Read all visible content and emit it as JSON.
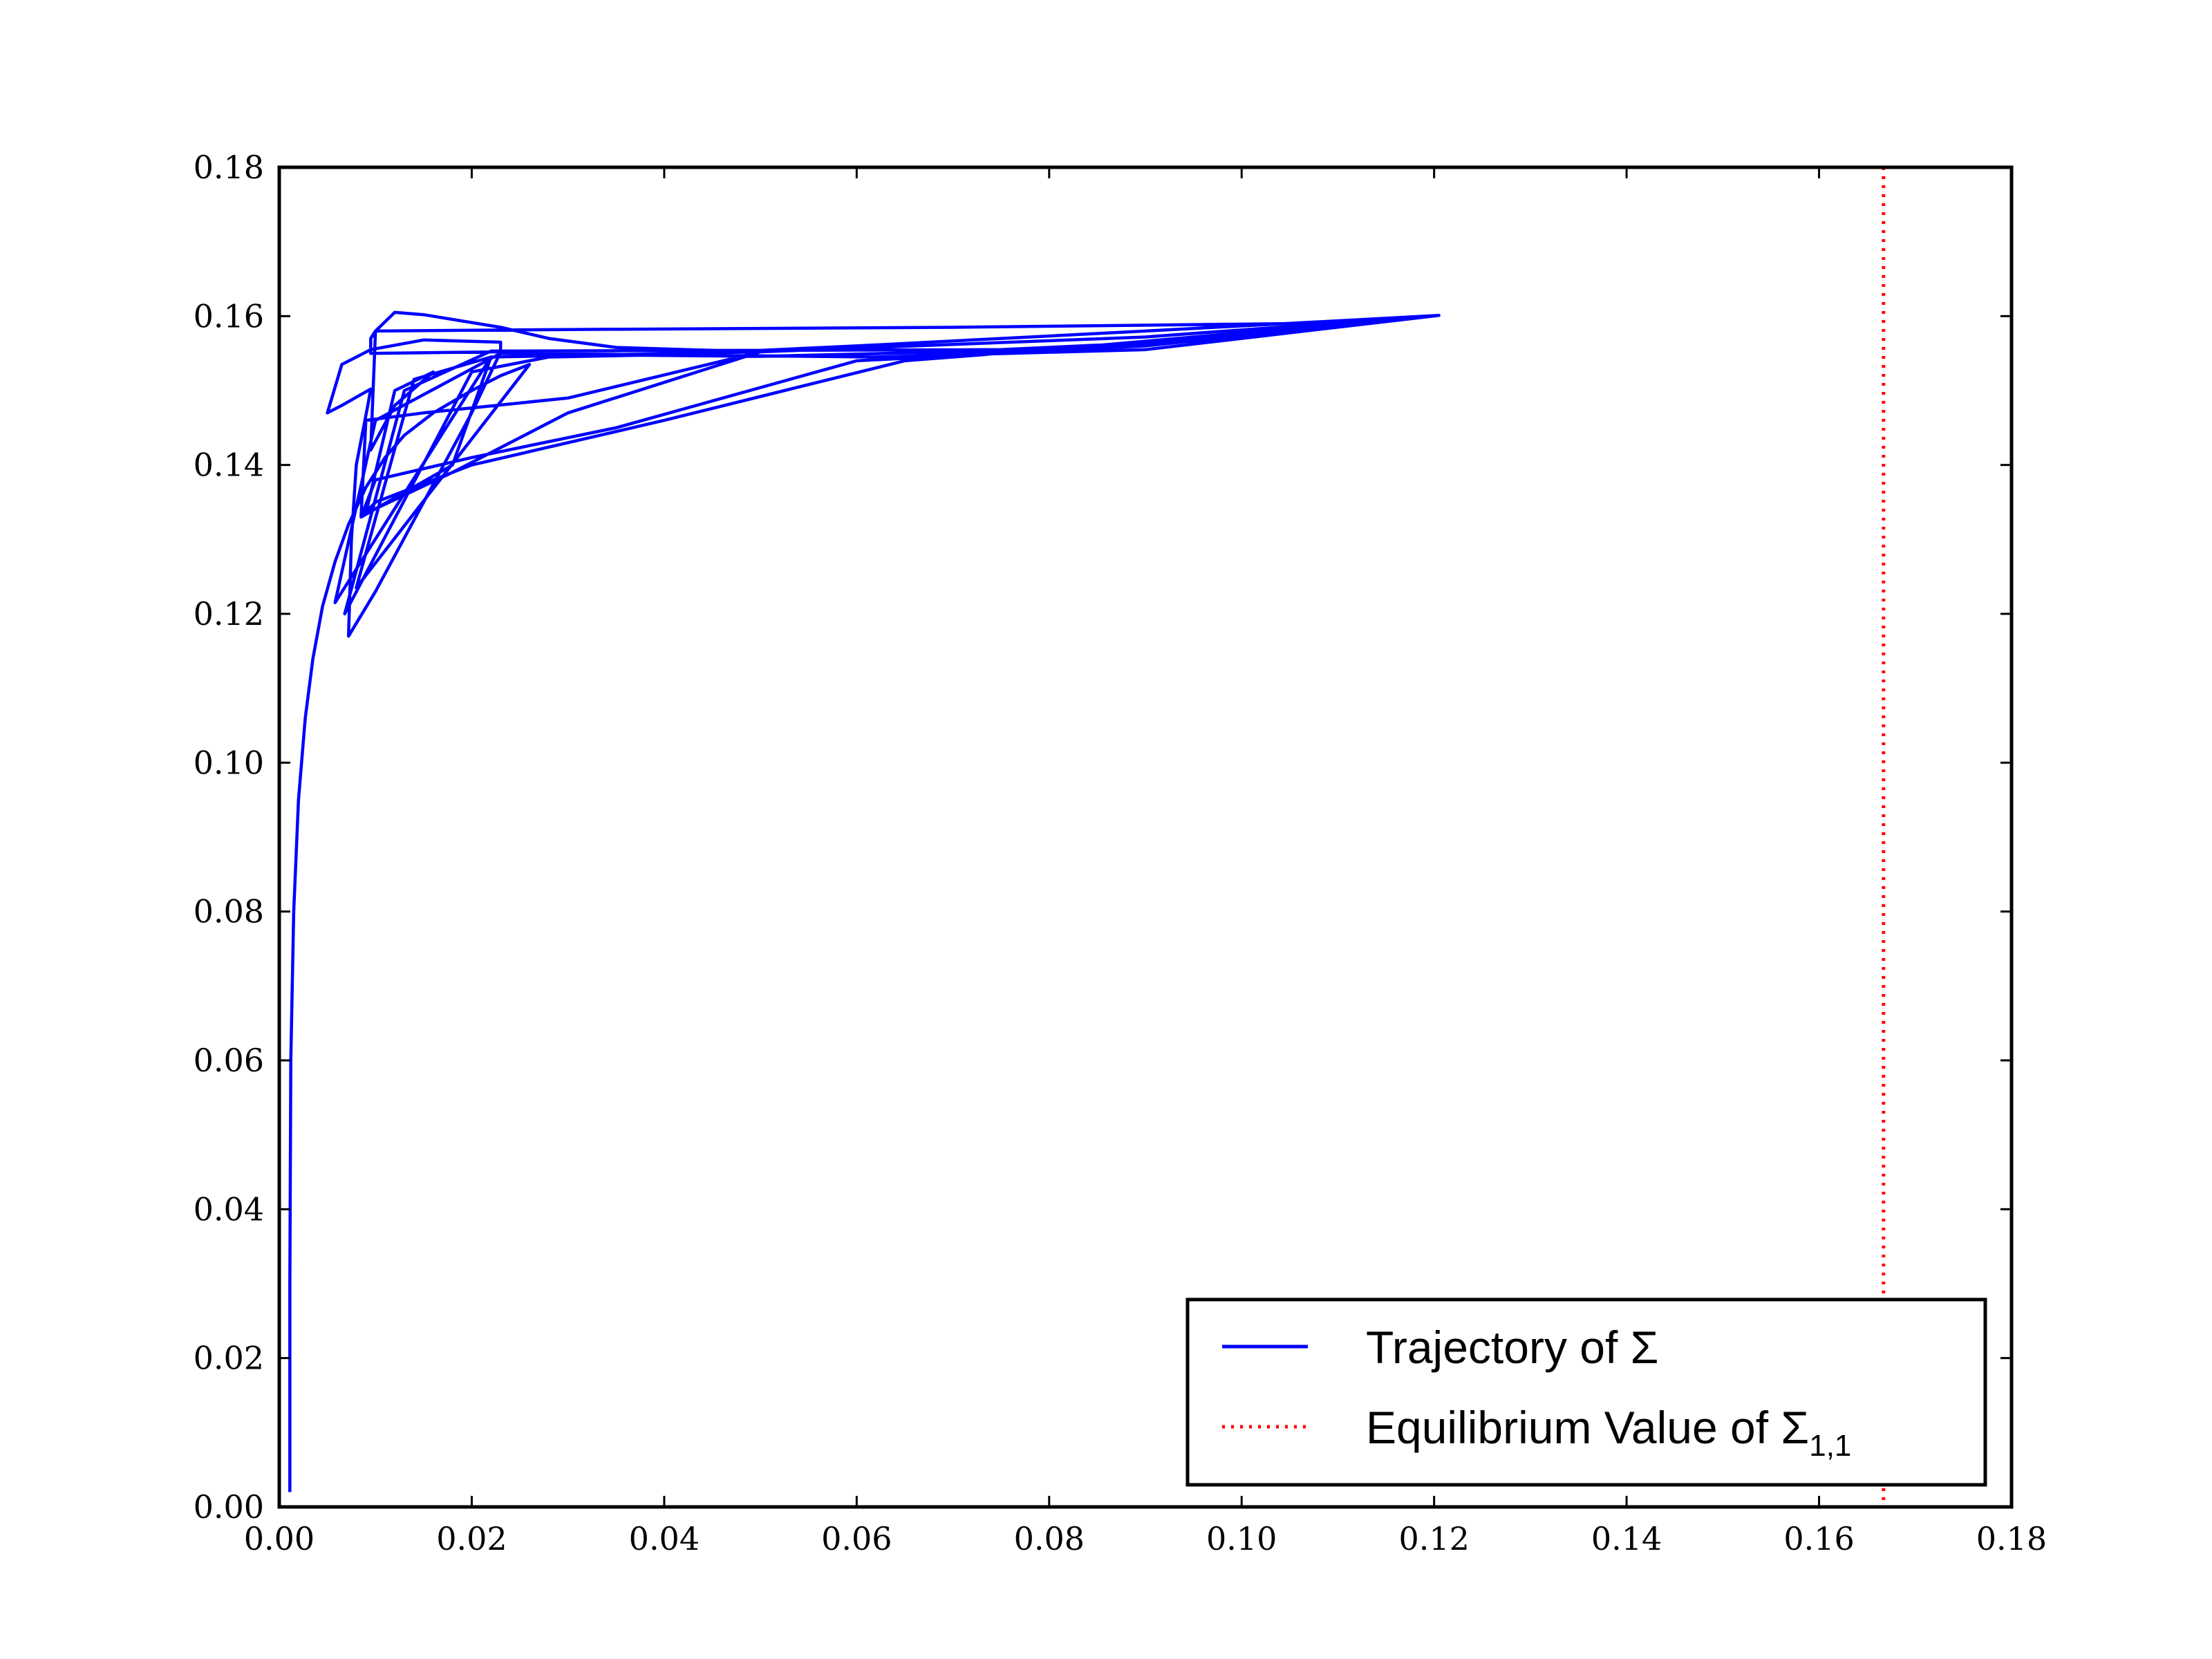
{
  "chart_data": {
    "type": "line",
    "title": "",
    "xlabel": "",
    "ylabel": "",
    "xlim": [
      0.0,
      0.18
    ],
    "ylim": [
      0.0,
      0.18
    ],
    "grid": false,
    "legend_position": "bottom-right",
    "x_ticks": [
      "0.00",
      "0.02",
      "0.04",
      "0.06",
      "0.08",
      "0.10",
      "0.12",
      "0.14",
      "0.16",
      "0.18"
    ],
    "y_ticks": [
      "0.00",
      "0.02",
      "0.04",
      "0.06",
      "0.08",
      "0.10",
      "0.12",
      "0.14",
      "0.16",
      "0.18"
    ],
    "legend": [
      {
        "label": "Trajectory of Σ",
        "color": "#0000ff",
        "style": "solid"
      },
      {
        "label": "Equilibrium Value of Σ",
        "subscript": "1,1",
        "color": "#ff0000",
        "style": "dotted"
      }
    ],
    "series": [
      {
        "name": "Trajectory of Σ",
        "color": "#0000ff",
        "points": [
          [
            0.0011,
            0.002
          ],
          [
            0.0011,
            0.03
          ],
          [
            0.0012,
            0.06
          ],
          [
            0.0015,
            0.08
          ],
          [
            0.002,
            0.095
          ],
          [
            0.0027,
            0.106
          ],
          [
            0.0035,
            0.114
          ],
          [
            0.0045,
            0.121
          ],
          [
            0.0058,
            0.127
          ],
          [
            0.0072,
            0.132
          ],
          [
            0.009,
            0.137
          ],
          [
            0.011,
            0.141
          ],
          [
            0.013,
            0.144
          ],
          [
            0.016,
            0.147
          ],
          [
            0.02,
            0.15
          ],
          [
            0.023,
            0.152
          ],
          [
            0.026,
            0.1535
          ],
          [
            0.008,
            0.1235
          ],
          [
            0.014,
            0.1515
          ],
          [
            0.022,
            0.1545
          ],
          [
            0.0058,
            0.1215
          ],
          [
            0.01,
            0.146
          ],
          [
            0.023,
            0.155
          ],
          [
            0.04,
            0.1548
          ],
          [
            0.062,
            0.1545
          ],
          [
            0.09,
            0.1555
          ],
          [
            0.1205,
            0.1601
          ],
          [
            0.09,
            0.158
          ],
          [
            0.06,
            0.156
          ],
          [
            0.04,
            0.1548
          ],
          [
            0.028,
            0.1545
          ],
          [
            0.02,
            0.1525
          ],
          [
            0.0068,
            0.12
          ],
          [
            0.013,
            0.15
          ],
          [
            0.022,
            0.1553
          ],
          [
            0.048,
            0.1554
          ],
          [
            0.075,
            0.1555
          ],
          [
            0.1,
            0.157
          ],
          [
            0.1205,
            0.1601
          ],
          [
            0.105,
            0.159
          ],
          [
            0.07,
            0.1585
          ],
          [
            0.03,
            0.1582
          ],
          [
            0.01,
            0.158
          ],
          [
            0.0095,
            0.157
          ],
          [
            0.0095,
            0.155
          ],
          [
            0.023,
            0.1552
          ],
          [
            0.023,
            0.1565
          ],
          [
            0.015,
            0.1568
          ],
          [
            0.0095,
            0.1555
          ],
          [
            0.0065,
            0.1535
          ],
          [
            0.005,
            0.147
          ],
          [
            0.0065,
            0.148
          ],
          [
            0.0095,
            0.1502
          ],
          [
            0.0092,
            0.148
          ],
          [
            0.008,
            0.14
          ],
          [
            0.0075,
            0.13
          ],
          [
            0.0072,
            0.117
          ],
          [
            0.01,
            0.123
          ],
          [
            0.015,
            0.135
          ],
          [
            0.02,
            0.147
          ],
          [
            0.023,
            0.1552
          ],
          [
            0.032,
            0.1548
          ],
          [
            0.05,
            0.1546
          ],
          [
            0.08,
            0.1555
          ],
          [
            0.1205,
            0.1601
          ],
          [
            0.09,
            0.156
          ],
          [
            0.06,
            0.154
          ],
          [
            0.035,
            0.145
          ],
          [
            0.02,
            0.141
          ],
          [
            0.01,
            0.138
          ],
          [
            0.0085,
            0.133
          ],
          [
            0.01,
            0.135
          ],
          [
            0.02,
            0.14
          ],
          [
            0.04,
            0.146
          ],
          [
            0.065,
            0.154
          ],
          [
            0.095,
            0.157
          ],
          [
            0.1205,
            0.1601
          ],
          [
            0.09,
            0.1572
          ],
          [
            0.05,
            0.1552
          ],
          [
            0.03,
            0.149
          ],
          [
            0.015,
            0.147
          ],
          [
            0.009,
            0.146
          ],
          [
            0.0085,
            0.133
          ],
          [
            0.018,
            0.14
          ],
          [
            0.022,
            0.1545
          ],
          [
            0.05,
            0.1552
          ],
          [
            0.03,
            0.147
          ],
          [
            0.018,
            0.139
          ],
          [
            0.009,
            0.1335
          ],
          [
            0.012,
            0.15
          ],
          [
            0.016,
            0.1525
          ],
          [
            0.012,
            0.148
          ],
          [
            0.0095,
            0.142
          ],
          [
            0.01,
            0.158
          ],
          [
            0.012,
            0.1605
          ],
          [
            0.015,
            0.1602
          ],
          [
            0.023,
            0.1585
          ],
          [
            0.028,
            0.157
          ],
          [
            0.035,
            0.1558
          ],
          [
            0.05,
            0.1552
          ]
        ]
      },
      {
        "name": "Equilibrium Value of Σ1,1",
        "color": "#ff0000",
        "style": "dotted",
        "vertical_line_x": 0.1667
      }
    ]
  }
}
